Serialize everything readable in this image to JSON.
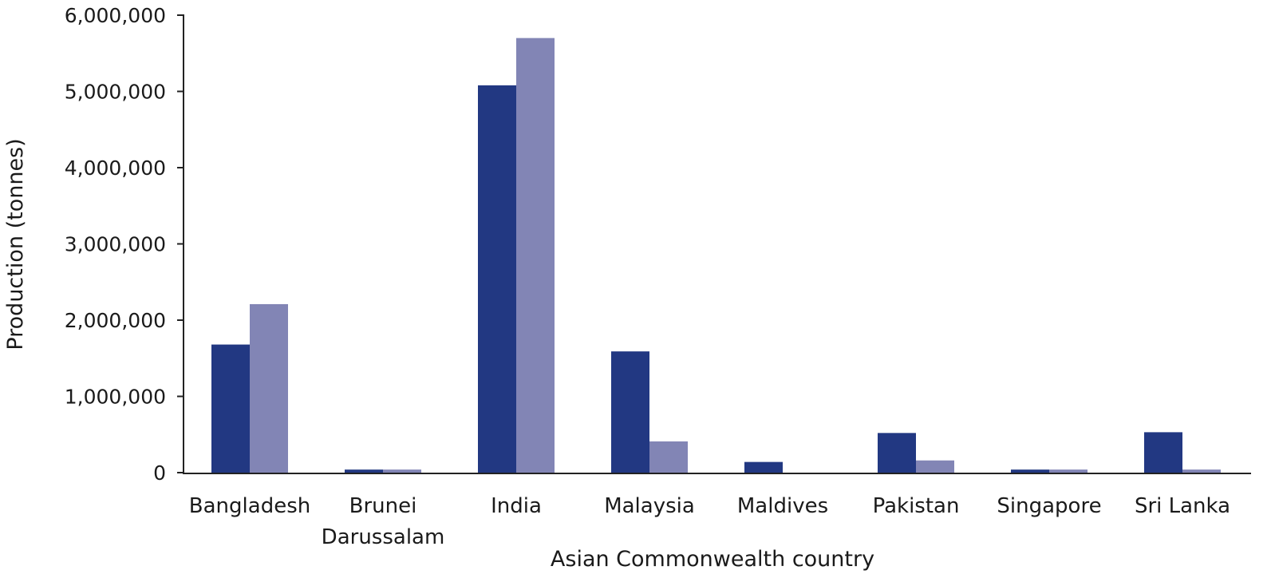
{
  "chart_data": {
    "type": "bar",
    "xlabel": "Asian Commonwealth country",
    "ylabel": "Production (tonnes)",
    "ylim": [
      0,
      6000000
    ],
    "yticks": [
      0,
      1000000,
      2000000,
      3000000,
      4000000,
      5000000,
      6000000
    ],
    "ytick_labels": [
      "0",
      "1,000,000",
      "2,000,000",
      "3,000,000",
      "4,000,000",
      "5,000,000",
      "6,000,000"
    ],
    "categories": [
      [
        "Bangladesh"
      ],
      [
        "Brunei",
        "Darussalam"
      ],
      [
        "India"
      ],
      [
        "Malaysia"
      ],
      [
        "Maldives"
      ],
      [
        "Pakistan"
      ],
      [
        "Singapore"
      ],
      [
        "Sri Lanka"
      ]
    ],
    "series": [
      {
        "color": "#223882",
        "values": [
          1680000,
          40000,
          5080000,
          1590000,
          140000,
          520000,
          40000,
          530000
        ]
      },
      {
        "color": "#8285b5",
        "values": [
          2210000,
          40000,
          5700000,
          410000,
          0,
          160000,
          40000,
          40000
        ]
      }
    ],
    "grid": false,
    "legend": "none"
  }
}
